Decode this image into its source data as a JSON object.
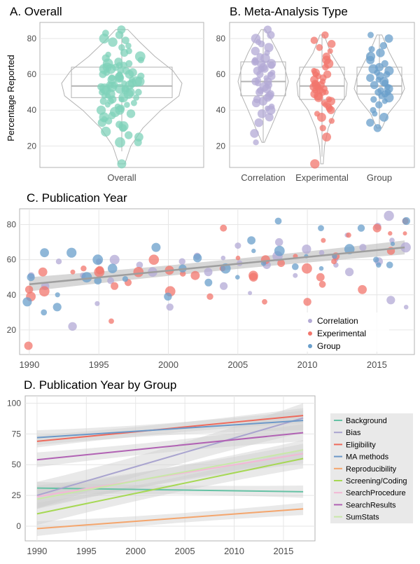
{
  "colors": {
    "overall": "#7fd1b9",
    "correlation": "#b3aad5",
    "experimental": "#f2766c",
    "group": "#6a9fcb",
    "grid": "#e6e6e6",
    "frame": "#b3b3b3",
    "tick_text": "#4d4d4d",
    "band": "#bdbdbd"
  },
  "chart_data": [
    {
      "id": "A",
      "type": "scatter",
      "title": "A. Overall",
      "ylabel": "Percentage Reported",
      "ylim": [
        8,
        89
      ],
      "yticks": [
        20,
        40,
        60,
        80
      ],
      "categories": [
        "Overall"
      ],
      "boxplot": [
        {
          "category": "Overall",
          "whisker_low": 17,
          "q1": 47,
          "median": 53.5,
          "q3": 64,
          "whisker_high": 83
        }
      ],
      "violin": [
        {
          "category": "Overall",
          "y": [
            10,
            20,
            30,
            40,
            48,
            55,
            62,
            70,
            78,
            85
          ],
          "width": [
            0.05,
            0.15,
            0.35,
            0.65,
            0.95,
            1.0,
            0.85,
            0.55,
            0.3,
            0.1
          ]
        }
      ],
      "points": {
        "y": [
          85,
          83,
          82,
          80,
          79,
          78,
          76,
          75,
          73,
          72,
          71,
          70,
          69,
          68,
          67,
          66,
          66,
          65,
          65,
          64,
          64,
          63,
          63,
          62,
          62,
          61,
          61,
          60,
          60,
          60,
          59,
          59,
          58,
          58,
          58,
          57,
          57,
          56,
          56,
          55,
          55,
          54,
          54,
          54,
          53,
          53,
          52,
          52,
          52,
          51,
          51,
          50,
          50,
          50,
          49,
          49,
          48,
          48,
          47,
          47,
          46,
          46,
          45,
          45,
          44,
          43,
          43,
          42,
          41,
          40,
          40,
          39,
          38,
          37,
          36,
          35,
          34,
          33,
          32,
          31,
          30,
          28,
          26,
          25,
          22,
          22,
          10
        ]
      }
    },
    {
      "id": "B",
      "type": "scatter",
      "title": "B. Meta-Analysis Type",
      "ylim": [
        8,
        89
      ],
      "yticks": [
        20,
        40,
        60,
        80
      ],
      "categories": [
        "Correlation",
        "Experimental",
        "Group"
      ],
      "boxplot": [
        {
          "category": "Correlation",
          "whisker_low": 22,
          "q1": 48,
          "median": 56,
          "q3": 67,
          "whisker_high": 85
        },
        {
          "category": "Experimental",
          "whisker_low": 14,
          "q1": 46,
          "median": 53.5,
          "q3": 64,
          "whisker_high": 82
        },
        {
          "category": "Group",
          "whisker_low": 30,
          "q1": 49,
          "median": 53.5,
          "q3": 64,
          "whisker_high": 82
        }
      ],
      "violin": [
        {
          "category": "Correlation",
          "y": [
            22,
            30,
            40,
            48,
            56,
            64,
            72,
            80,
            85
          ],
          "width": [
            0.05,
            0.3,
            0.6,
            0.85,
            1.0,
            0.85,
            0.6,
            0.3,
            0.08
          ]
        },
        {
          "category": "Experimental",
          "y": [
            10,
            20,
            30,
            40,
            48,
            55,
            63,
            72,
            82
          ],
          "width": [
            0.05,
            0.1,
            0.25,
            0.55,
            0.95,
            1.0,
            0.75,
            0.35,
            0.08
          ]
        },
        {
          "category": "Group",
          "y": [
            30,
            38,
            46,
            52,
            58,
            64,
            72,
            82
          ],
          "width": [
            0.1,
            0.35,
            0.8,
            1.0,
            0.9,
            0.7,
            0.4,
            0.1
          ]
        }
      ],
      "points": [
        {
          "category": "Correlation",
          "y": [
            85,
            82,
            80,
            78,
            77,
            75,
            73,
            72,
            70,
            69,
            68,
            67,
            67,
            66,
            66,
            65,
            64,
            63,
            63,
            62,
            61,
            60,
            60,
            59,
            58,
            57,
            56,
            56,
            55,
            54,
            53,
            52,
            51,
            50,
            49,
            48,
            47,
            46,
            45,
            44,
            42,
            41,
            40,
            38,
            36,
            33,
            27,
            22
          ]
        },
        {
          "category": "Experimental",
          "y": [
            82,
            79,
            77,
            75,
            73,
            70,
            68,
            66,
            64,
            62,
            61,
            60,
            60,
            59,
            58,
            57,
            56,
            55,
            54,
            54,
            53,
            53,
            52,
            52,
            51,
            51,
            50,
            50,
            49,
            48,
            47,
            46,
            45,
            44,
            43,
            42,
            41,
            40,
            38,
            36,
            34,
            30,
            25,
            10
          ]
        },
        {
          "category": "Group",
          "y": [
            82,
            80,
            76,
            74,
            72,
            70,
            68,
            66,
            64,
            63,
            62,
            61,
            60,
            59,
            58,
            57,
            56,
            55,
            54,
            53,
            52,
            51,
            50,
            50,
            49,
            48,
            47,
            46,
            45,
            43,
            40,
            38,
            36,
            33,
            30
          ]
        }
      ]
    },
    {
      "id": "C",
      "type": "scatter",
      "title": "C. Publication Year",
      "xlim": [
        1989.3,
        2017.7
      ],
      "ylim": [
        6,
        89
      ],
      "xticks": [
        1990,
        1995,
        2000,
        2005,
        2010,
        2015
      ],
      "yticks": [
        20,
        40,
        60,
        80
      ],
      "legend": {
        "position": "bottom-right",
        "entries": [
          "Correlation",
          "Experimental",
          "Group"
        ]
      },
      "trend": {
        "x": [
          1990,
          2017
        ],
        "y": [
          46,
          67
        ],
        "band_halfwidth": [
          4,
          3,
          4
        ]
      },
      "series": [
        {
          "name": "Correlation",
          "x": [
            1990,
            1991,
            1992,
            1993,
            1994,
            1995,
            1995,
            1996,
            1996,
            1998,
            1999,
            2000,
            2001,
            2002,
            2003,
            2004,
            2004,
            2005,
            2005,
            2006,
            2007,
            2008,
            2008,
            2009,
            2010,
            2011,
            2012,
            2012,
            2013,
            2013,
            2014,
            2015,
            2015,
            2016,
            2016,
            2016,
            2017,
            2017
          ],
          "y": [
            51,
            45,
            59,
            22,
            51,
            35,
            59,
            60,
            48,
            57,
            53,
            33,
            59,
            62,
            53,
            45,
            61,
            58,
            68,
            41,
            57,
            62,
            70,
            51,
            66,
            64,
            60,
            57,
            74,
            53,
            67,
            59,
            79,
            85,
            71,
            37,
            67,
            33
          ]
        },
        {
          "name": "Experimental",
          "x": [
            1990,
            1990,
            1990,
            1991,
            1991,
            1993,
            1994,
            1995,
            1995,
            1996,
            1996,
            1997,
            1998,
            1999,
            2000,
            2000,
            2001,
            2002,
            2003,
            2004,
            2004,
            2005,
            2006,
            2006,
            2007,
            2007,
            2008,
            2009,
            2010,
            2010,
            2011,
            2011,
            2011,
            2012,
            2012,
            2013,
            2014,
            2015,
            2016,
            2016,
            2017,
            2017
          ],
          "y": [
            11,
            39,
            43,
            53,
            42,
            53,
            55,
            54,
            53,
            45,
            25,
            47,
            53,
            60,
            42,
            54,
            52,
            51,
            39,
            78,
            55,
            61,
            51,
            50,
            36,
            60,
            58,
            62,
            36,
            55,
            71,
            50,
            46,
            62,
            59,
            74,
            43,
            78,
            65,
            75,
            82,
            75
          ]
        },
        {
          "name": "Group",
          "x": [
            1990,
            1990,
            1991,
            1991,
            1992,
            1992,
            1993,
            1994,
            1995,
            1995,
            1996,
            1997,
            1999,
            2000,
            2001,
            2002,
            2003,
            2004,
            2005,
            2006,
            2006,
            2007,
            2008,
            2008,
            2009,
            2010,
            2011,
            2011,
            2012,
            2013,
            2014,
            2015,
            2015,
            2016,
            2016,
            2017
          ],
          "y": [
            36,
            50,
            64,
            30,
            33,
            40,
            64,
            50,
            48,
            60,
            55,
            49,
            67,
            39,
            55,
            61,
            47,
            55,
            50,
            65,
            71,
            58,
            82,
            65,
            56,
            62,
            78,
            55,
            62,
            66,
            78,
            57,
            60,
            69,
            57,
            82
          ]
        }
      ]
    },
    {
      "id": "D",
      "type": "line",
      "title": "D. Publication Year by Group",
      "xlim": [
        1988.8,
        2018.2
      ],
      "ylim": [
        -12,
        106
      ],
      "xticks": [
        1990,
        1995,
        2000,
        2005,
        2010,
        2015
      ],
      "yticks": [
        0,
        25,
        50,
        75,
        100
      ],
      "legend": {
        "position": "right"
      },
      "series": [
        {
          "name": "Background",
          "color": "#66c2a5",
          "x": [
            1990,
            2017
          ],
          "y": [
            31,
            28
          ],
          "band": [
            5,
            5
          ]
        },
        {
          "name": "Bias",
          "color": "#a9a4cf",
          "x": [
            1990,
            2017
          ],
          "y": [
            25,
            88
          ],
          "band": [
            11,
            12
          ]
        },
        {
          "name": "Eligibility",
          "color": "#ee6a5c",
          "x": [
            1990,
            2017
          ],
          "y": [
            69,
            90
          ],
          "band": [
            5,
            6
          ]
        },
        {
          "name": "MA methods",
          "color": "#6c98c8",
          "x": [
            1990,
            2017
          ],
          "y": [
            72,
            86
          ],
          "band": [
            6,
            8
          ]
        },
        {
          "name": "Reproducibility",
          "color": "#f4a56c",
          "x": [
            1990,
            2017
          ],
          "y": [
            -2,
            14
          ],
          "band": [
            6,
            5
          ]
        },
        {
          "name": "Screening/Coding",
          "color": "#a6d854",
          "x": [
            1990,
            2017
          ],
          "y": [
            10,
            55
          ],
          "band": [
            9,
            8
          ]
        },
        {
          "name": "SearchProcedure",
          "color": "#f3b7d5",
          "x": [
            1990,
            2017
          ],
          "y": [
            24,
            59
          ],
          "band": [
            9,
            8
          ]
        },
        {
          "name": "SearchResults",
          "color": "#b162b4",
          "x": [
            1990,
            2017
          ],
          "y": [
            54,
            76
          ],
          "band": [
            6,
            7
          ]
        },
        {
          "name": "SumStats",
          "color": "#c8e8a8",
          "x": [
            1990,
            2017
          ],
          "y": [
            22,
            62
          ],
          "band": [
            8,
            8
          ]
        }
      ]
    }
  ]
}
